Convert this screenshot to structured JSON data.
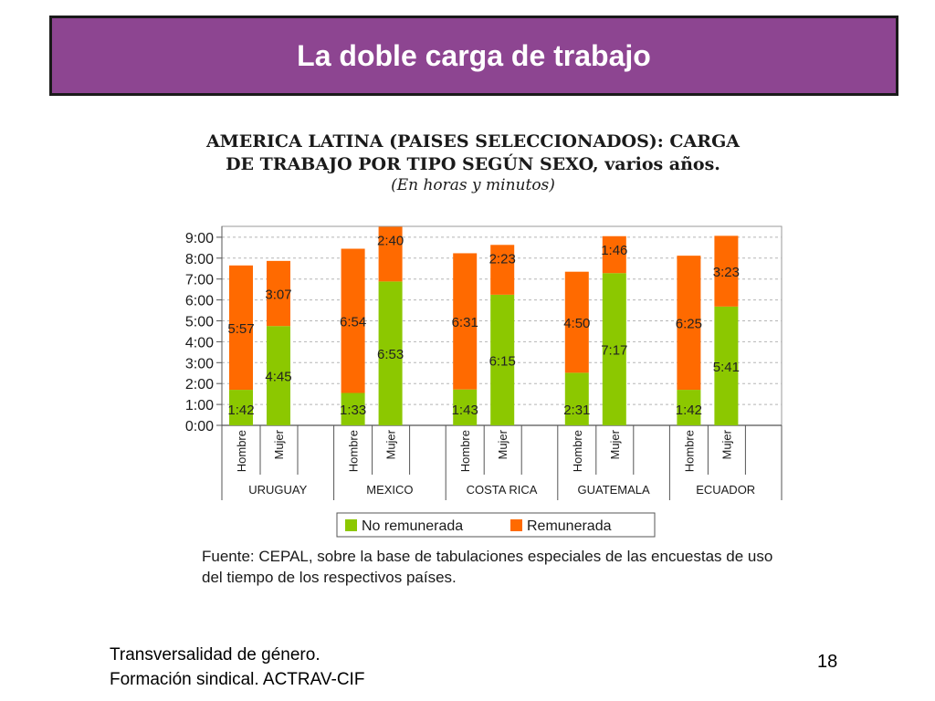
{
  "slide": {
    "title": "La doble carga de trabajo",
    "footer_line1": "Transversalidad de género.",
    "footer_line2": "Formación sindical. ACTRAV-CIF",
    "page_number": "18",
    "accent_color": "#8d4591"
  },
  "chart_data": {
    "type": "bar",
    "stacked": true,
    "title_line1": "AMERICA LATINA (PAISES SELECCIONADOS): CARGA",
    "title_line2": "DE TRABAJO POR TIPO SEGÚN SEXO, varios años.",
    "subtitle": "(En horas y minutos)",
    "y_ticks": [
      "0:00",
      "1:00",
      "2:00",
      "3:00",
      "4:00",
      "5:00",
      "6:00",
      "7:00",
      "8:00",
      "9:00"
    ],
    "ylim": [
      0,
      9.5
    ],
    "grid": true,
    "legend_position": "bottom",
    "countries": [
      {
        "name": "URUGUAY",
        "bars": [
          {
            "sex": "Hombre",
            "no_remunerada": "1:42",
            "remunerada": "5:57"
          },
          {
            "sex": "Mujer",
            "no_remunerada": "4:45",
            "remunerada": "3:07"
          }
        ]
      },
      {
        "name": "MEXICO",
        "bars": [
          {
            "sex": "Hombre",
            "no_remunerada": "1:33",
            "remunerada": "6:54"
          },
          {
            "sex": "Mujer",
            "no_remunerada": "6:53",
            "remunerada": "2:40"
          }
        ]
      },
      {
        "name": "COSTA RICA",
        "bars": [
          {
            "sex": "Hombre",
            "no_remunerada": "1:43",
            "remunerada": "6:31"
          },
          {
            "sex": "Mujer",
            "no_remunerada": "6:15",
            "remunerada": "2:23"
          }
        ]
      },
      {
        "name": "GUATEMALA",
        "bars": [
          {
            "sex": "Hombre",
            "no_remunerada": "2:31",
            "remunerada": "4:50"
          },
          {
            "sex": "Mujer",
            "no_remunerada": "7:17",
            "remunerada": "1:46"
          }
        ]
      },
      {
        "name": "ECUADOR",
        "bars": [
          {
            "sex": "Hombre",
            "no_remunerada": "1:42",
            "remunerada": "6:25"
          },
          {
            "sex": "Mujer",
            "no_remunerada": "5:41",
            "remunerada": "3:23"
          }
        ]
      }
    ],
    "series": [
      {
        "name": "No remunerada",
        "key": "no_remunerada",
        "color": "#8cc800"
      },
      {
        "name": "Remunerada",
        "key": "remunerada",
        "color": "#ff6a00"
      }
    ],
    "source_note": "Fuente: CEPAL, sobre la base de tabulaciones especiales de las encuestas de uso del tiempo de los respectivos países."
  }
}
